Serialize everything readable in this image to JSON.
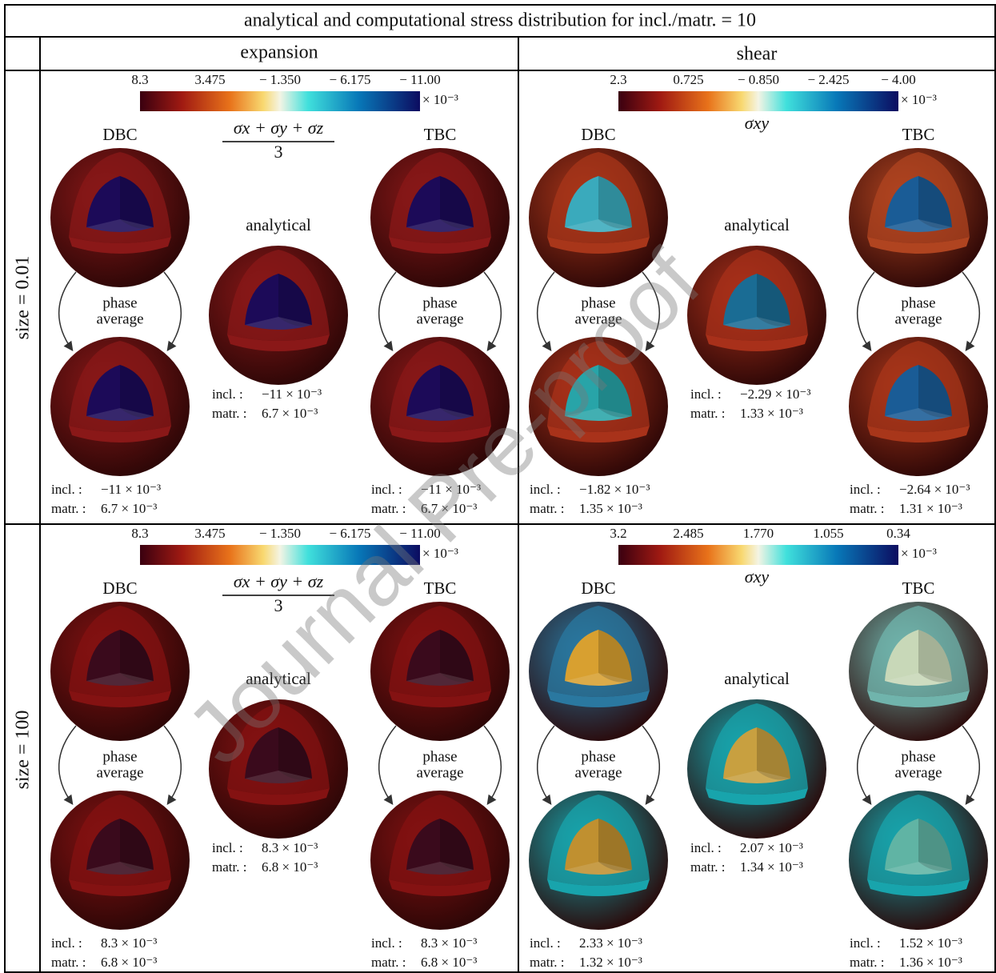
{
  "title": "analytical and computational stress distribution for incl./matr. = 10",
  "watermark": "Journal Pre-proof",
  "columns": [
    "expansion",
    "shear"
  ],
  "rows": [
    "size = 0.01",
    "size = 100"
  ],
  "labels": {
    "dbc": "DBC",
    "tbc": "TBC",
    "analytical": "analytical",
    "phase_average": [
      "phase",
      "average"
    ],
    "incl": "incl. :",
    "matr": "matr. :",
    "multiplier": "× 10⁻³"
  },
  "panels": [
    {
      "colorbar_ticks": [
        "8.3",
        "3.475",
        "− 1.350",
        "− 6.175",
        "− 11.00"
      ],
      "quantity": {
        "numerator": "σx + σy + σz",
        "denominator": "3"
      },
      "dbc": {
        "incl": "−11 × 10⁻³",
        "matr": "6.7 × 10⁻³"
      },
      "analytical": {
        "incl": "−11 × 10⁻³",
        "matr": "6.7 × 10⁻³"
      },
      "tbc": {
        "incl": "−11 × 10⁻³",
        "matr": "6.7 × 10⁻³"
      }
    },
    {
      "colorbar_ticks": [
        "2.3",
        "0.725",
        "− 0.850",
        "− 2.425",
        "− 4.00"
      ],
      "quantity": {
        "symbol": "σxy"
      },
      "dbc": {
        "incl": "−1.82 × 10⁻³",
        "matr": "1.35 × 10⁻³"
      },
      "analytical": {
        "incl": "−2.29 × 10⁻³",
        "matr": "1.33 × 10⁻³"
      },
      "tbc": {
        "incl": "−2.64 × 10⁻³",
        "matr": "1.31 × 10⁻³"
      }
    },
    {
      "colorbar_ticks": [
        "8.3",
        "3.475",
        "− 1.350",
        "− 6.175",
        "− 11.00"
      ],
      "quantity": {
        "numerator": "σx + σy + σz",
        "denominator": "3"
      },
      "dbc": {
        "incl": "8.3 × 10⁻³",
        "matr": "6.8 × 10⁻³"
      },
      "analytical": {
        "incl": "8.3 × 10⁻³",
        "matr": "6.8 × 10⁻³"
      },
      "tbc": {
        "incl": "8.3 × 10⁻³",
        "matr": "6.8 × 10⁻³"
      }
    },
    {
      "colorbar_ticks": [
        "3.2",
        "2.485",
        "1.770",
        "1.055",
        "0.34"
      ],
      "quantity": {
        "symbol": "σxy"
      },
      "dbc": {
        "incl": "2.33 × 10⁻³",
        "matr": "1.32 × 10⁻³"
      },
      "analytical": {
        "incl": "2.07 × 10⁻³",
        "matr": "1.34 × 10⁻³"
      },
      "tbc": {
        "incl": "1.52 × 10⁻³",
        "matr": "1.36 × 10⁻³"
      }
    }
  ]
}
